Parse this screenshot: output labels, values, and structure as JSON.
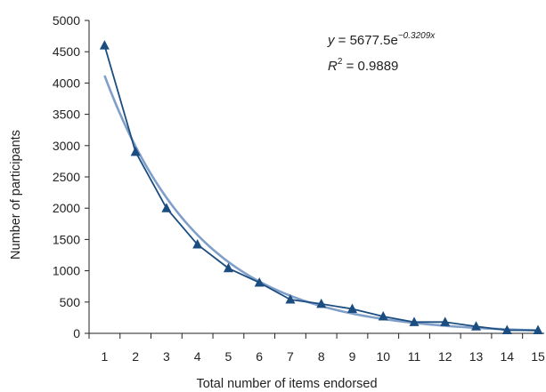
{
  "chart_data": {
    "type": "line",
    "title": "",
    "xlabel": "Total number of items endorsed",
    "ylabel": "Number of participants",
    "xlim": [
      0.5,
      15.2
    ],
    "ylim": [
      0,
      5000
    ],
    "x_ticks": [
      1,
      2,
      3,
      4,
      5,
      6,
      7,
      8,
      9,
      10,
      11,
      12,
      13,
      14,
      15
    ],
    "y_ticks": [
      0,
      500,
      1000,
      1500,
      2000,
      2500,
      3000,
      3500,
      4000,
      4500,
      5000
    ],
    "grid": false,
    "legend": "none",
    "series": [
      {
        "kind": "observed",
        "marker": "triangle",
        "color": "#1c4d80",
        "x": [
          1,
          2,
          3,
          4,
          5,
          6,
          7,
          8,
          9,
          10,
          11,
          12,
          13,
          14,
          15
        ],
        "values": [
          4600,
          2900,
          2000,
          1420,
          1040,
          810,
          540,
          470,
          390,
          270,
          180,
          180,
          110,
          50,
          50
        ]
      },
      {
        "kind": "exponential-fit",
        "color": "#7f9fc9",
        "a": 5677.5,
        "b": -0.3209,
        "x_range": [
          1,
          15
        ]
      }
    ],
    "annotation": {
      "y_lhs": "y",
      "eq_rhs": " = 5677.5e",
      "exponent": "−0.3209x",
      "r_lhs": "R",
      "r_power": "2",
      "r_rhs": " = 0.9889"
    }
  }
}
